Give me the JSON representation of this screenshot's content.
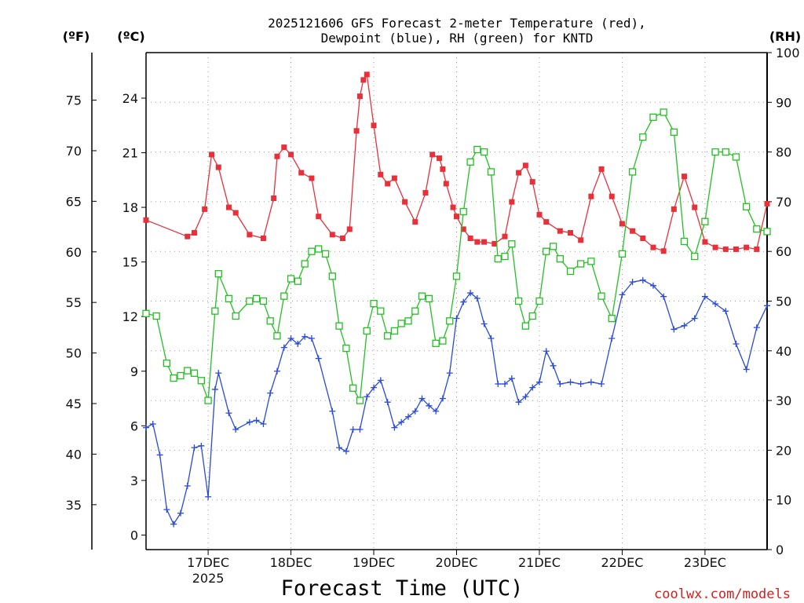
{
  "title": {
    "line1": "2025121606 GFS Forecast 2-meter Temperature (red),",
    "line2": "Dewpoint (blue), RH (green) for KNTD"
  },
  "units": {
    "fahrenheit": "(ºF)",
    "celsius": "(ºC)",
    "rh": "(RH)"
  },
  "credit": "coolwx.com/models",
  "chart_data": {
    "type": "line",
    "title": "2025121606 GFS Forecast 2-meter Temperature (red), Dewpoint (blue), RH (green) for KNTD",
    "xlabel": "Forecast Time (UTC)",
    "x_range_days": [
      16.25,
      23.75
    ],
    "x_ticks": [
      {
        "day": 17,
        "label": "17DEC",
        "sub": "2025"
      },
      {
        "day": 18,
        "label": "18DEC",
        "sub": ""
      },
      {
        "day": 19,
        "label": "19DEC",
        "sub": ""
      },
      {
        "day": 20,
        "label": "20DEC",
        "sub": ""
      },
      {
        "day": 21,
        "label": "21DEC",
        "sub": ""
      },
      {
        "day": 22,
        "label": "22DEC",
        "sub": ""
      },
      {
        "day": 23,
        "label": "23DEC",
        "sub": ""
      }
    ],
    "y_left_c": {
      "label": "(ºC)",
      "range": [
        -0.8,
        26.5
      ],
      "ticks": [
        0,
        3,
        6,
        9,
        12,
        15,
        18,
        21,
        24
      ]
    },
    "y_left_f": {
      "label": "(ºF)",
      "ticks": [
        35,
        40,
        45,
        50,
        55,
        60,
        65,
        70,
        75
      ]
    },
    "y_right_rh": {
      "label": "(RH)",
      "range": [
        0,
        100
      ],
      "ticks": [
        0,
        10,
        20,
        30,
        40,
        50,
        60,
        70,
        80,
        90,
        100
      ]
    },
    "grid": true,
    "series": [
      {
        "name": "Temperature",
        "color": "#e8303a",
        "marker": "filled-square",
        "axis": "celsius",
        "x": [
          16.25,
          16.75,
          16.833,
          16.958,
          17.042,
          17.125,
          17.25,
          17.333,
          17.5,
          17.667,
          17.792,
          17.833,
          17.917,
          18.0,
          18.125,
          18.25,
          18.333,
          18.5,
          18.625,
          18.708,
          18.792,
          18.833,
          18.875,
          18.917,
          19.0,
          19.083,
          19.167,
          19.25,
          19.375,
          19.5,
          19.625,
          19.708,
          19.792,
          19.833,
          19.875,
          19.958,
          20.0,
          20.083,
          20.167,
          20.25,
          20.333,
          20.458,
          20.583,
          20.667,
          20.75,
          20.833,
          20.917,
          21.0,
          21.083,
          21.25,
          21.375,
          21.5,
          21.625,
          21.75,
          21.875,
          22.0,
          22.125,
          22.25,
          22.375,
          22.5,
          22.625,
          22.75,
          22.875,
          23.0,
          23.125,
          23.25,
          23.375,
          23.5,
          23.625,
          23.75
        ],
        "y": [
          17.3,
          16.4,
          16.6,
          17.9,
          20.9,
          20.2,
          18.0,
          17.7,
          16.5,
          16.3,
          18.5,
          20.8,
          21.3,
          20.9,
          19.9,
          19.6,
          17.5,
          16.5,
          16.3,
          16.8,
          22.2,
          24.1,
          25.0,
          25.3,
          22.5,
          19.8,
          19.3,
          19.6,
          18.3,
          17.2,
          18.8,
          20.9,
          20.7,
          20.1,
          19.3,
          18.0,
          17.5,
          16.8,
          16.3,
          16.1,
          16.1,
          16.0,
          16.4,
          18.3,
          19.9,
          20.3,
          19.4,
          17.6,
          17.2,
          16.7,
          16.6,
          16.2,
          18.6,
          20.1,
          18.6,
          17.1,
          16.7,
          16.3,
          15.8,
          15.6,
          17.9,
          19.7,
          18.0,
          16.1,
          15.8,
          15.7,
          15.7,
          15.8,
          15.7,
          18.2
        ]
      },
      {
        "name": "Dewpoint",
        "color": "#2a4ad8",
        "marker": "plus",
        "axis": "celsius",
        "x": [
          16.25,
          16.333,
          16.417,
          16.5,
          16.583,
          16.667,
          16.75,
          16.833,
          16.917,
          17.0,
          17.083,
          17.125,
          17.25,
          17.333,
          17.5,
          17.583,
          17.667,
          17.75,
          17.833,
          17.917,
          18.0,
          18.083,
          18.167,
          18.25,
          18.333,
          18.5,
          18.583,
          18.667,
          18.75,
          18.833,
          18.917,
          19.0,
          19.083,
          19.167,
          19.25,
          19.333,
          19.417,
          19.5,
          19.583,
          19.667,
          19.75,
          19.833,
          19.917,
          20.0,
          20.083,
          20.167,
          20.25,
          20.333,
          20.417,
          20.5,
          20.583,
          20.667,
          20.75,
          20.833,
          20.917,
          21.0,
          21.083,
          21.167,
          21.25,
          21.375,
          21.5,
          21.625,
          21.75,
          21.875,
          22.0,
          22.125,
          22.25,
          22.375,
          22.5,
          22.625,
          22.75,
          22.875,
          23.0,
          23.125,
          23.25,
          23.375,
          23.5,
          23.625,
          23.75
        ],
        "y": [
          5.9,
          6.1,
          4.4,
          1.4,
          0.6,
          1.2,
          2.7,
          4.8,
          4.9,
          2.1,
          8.0,
          8.9,
          6.7,
          5.8,
          6.2,
          6.3,
          6.1,
          7.8,
          9.0,
          10.3,
          10.8,
          10.5,
          10.9,
          10.8,
          9.7,
          6.8,
          4.8,
          4.6,
          5.8,
          5.8,
          7.6,
          8.1,
          8.5,
          7.3,
          5.9,
          6.2,
          6.5,
          6.8,
          7.5,
          7.1,
          6.8,
          7.5,
          8.9,
          11.9,
          12.8,
          13.3,
          13.0,
          11.6,
          10.8,
          8.3,
          8.3,
          8.6,
          7.3,
          7.6,
          8.1,
          8.4,
          10.1,
          9.3,
          8.3,
          8.4,
          8.3,
          8.4,
          8.3,
          10.8,
          13.2,
          13.9,
          14.0,
          13.7,
          13.1,
          11.3,
          11.5,
          11.9,
          13.1,
          12.7,
          12.3,
          10.5,
          9.1,
          11.4,
          12.6
        ]
      },
      {
        "name": "RH",
        "color": "#22c022",
        "marker": "open-square",
        "axis": "rh",
        "x": [
          16.25,
          16.375,
          16.5,
          16.583,
          16.667,
          16.75,
          16.833,
          16.917,
          17.0,
          17.083,
          17.125,
          17.25,
          17.333,
          17.5,
          17.583,
          17.667,
          17.75,
          17.833,
          17.917,
          18.0,
          18.083,
          18.167,
          18.25,
          18.333,
          18.417,
          18.5,
          18.583,
          18.667,
          18.75,
          18.833,
          18.917,
          19.0,
          19.083,
          19.167,
          19.25,
          19.333,
          19.417,
          19.5,
          19.583,
          19.667,
          19.75,
          19.833,
          19.917,
          20.0,
          20.083,
          20.167,
          20.25,
          20.333,
          20.417,
          20.5,
          20.583,
          20.667,
          20.75,
          20.833,
          20.917,
          21.0,
          21.083,
          21.167,
          21.25,
          21.375,
          21.5,
          21.625,
          21.75,
          21.875,
          22.0,
          22.125,
          22.25,
          22.375,
          22.5,
          22.625,
          22.75,
          22.875,
          23.0,
          23.125,
          23.25,
          23.375,
          23.5,
          23.625,
          23.75
        ],
        "y": [
          47.5,
          47.0,
          37.5,
          34.5,
          35.0,
          36.0,
          35.5,
          34.0,
          30.0,
          48.0,
          55.5,
          50.5,
          47.0,
          50.0,
          50.5,
          50.0,
          46.0,
          43.0,
          51.0,
          54.5,
          54.0,
          57.5,
          60.0,
          60.5,
          59.5,
          55.0,
          45.0,
          40.5,
          32.5,
          30.0,
          44.0,
          49.5,
          48.0,
          43.0,
          44.0,
          45.5,
          46.0,
          48.0,
          51.0,
          50.5,
          41.5,
          42.0,
          46.0,
          55.0,
          68.0,
          78.0,
          80.5,
          80.0,
          76.0,
          58.5,
          59.0,
          61.5,
          50.0,
          45.0,
          47.0,
          50.0,
          60.0,
          61.0,
          58.5,
          56.0,
          57.5,
          58.0,
          51.0,
          46.5,
          59.5,
          76.0,
          83.0,
          87.0,
          88.0,
          84.0,
          62.0,
          59.0,
          66.0,
          80.0,
          80.0,
          79.0,
          69.0,
          64.5,
          64.0
        ]
      }
    ]
  }
}
